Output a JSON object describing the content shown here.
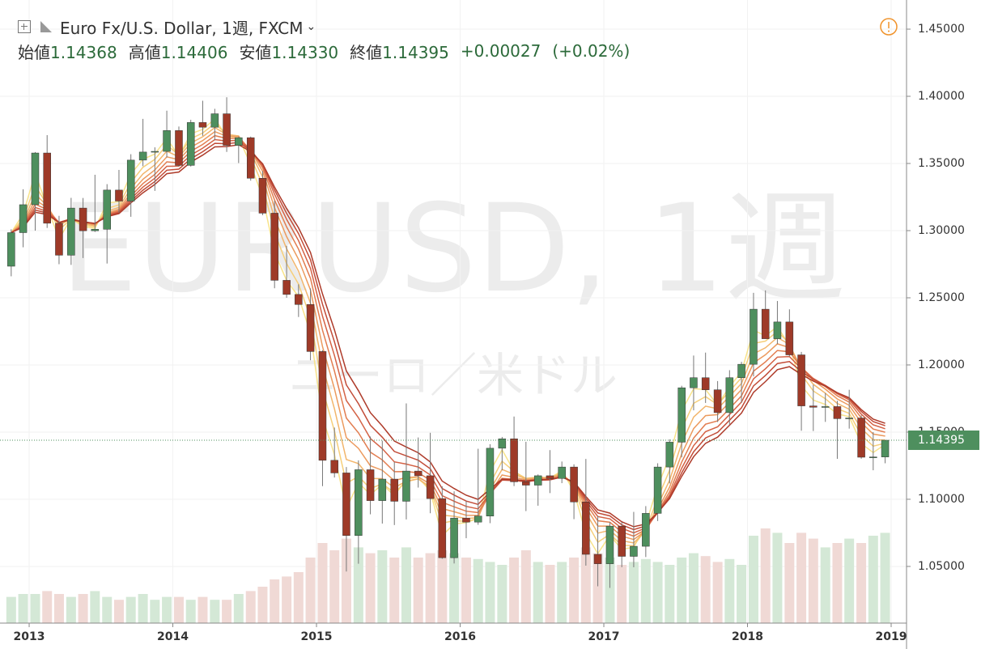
{
  "chart_data": {
    "type": "candlestick",
    "title": "Euro Fx/U.S. Dollar, 1週, FXCM",
    "ohlc_legend": [
      {
        "label": "始値",
        "value": "1.14368"
      },
      {
        "label": "高値",
        "value": "1.14406"
      },
      {
        "label": "安値",
        "value": "1.14330"
      },
      {
        "label": "終値",
        "value": "1.14395"
      }
    ],
    "change": "+0.00027",
    "change_pct": "(+0.02%)",
    "watermark": "EURUSD, 1週",
    "watermark_sub": "ユーロ／米ドル",
    "last_price": 1.14395,
    "xlim": [
      2012.797,
      2019.107
    ],
    "xticks": [
      2013,
      2014,
      2015,
      2016,
      2017,
      2018,
      2019
    ],
    "ylim": [
      1.0078,
      1.4717
    ],
    "yticks": [
      {
        "value": 1.05,
        "label": "1.05000"
      },
      {
        "value": 1.1,
        "label": "1.10000"
      },
      {
        "value": 1.15,
        "label": "1.15000"
      },
      {
        "value": 1.2,
        "label": "1.20000"
      },
      {
        "value": 1.25,
        "label": "1.25000"
      },
      {
        "value": 1.3,
        "label": "1.30000"
      },
      {
        "value": 1.35,
        "label": "1.35000"
      },
      {
        "value": 1.4,
        "label": "1.40000"
      },
      {
        "value": 1.45,
        "label": "1.45000"
      }
    ],
    "grid": true,
    "up_color": "#4e8f5e",
    "down_color": "#9e3a28",
    "wick_color": "#777777",
    "volume_up_color": "#d4e8d6",
    "volume_down_color": "#f0d9d5",
    "ema_periods": [
      2,
      3,
      4,
      5,
      6,
      7,
      8,
      9
    ],
    "ema_colors": [
      "#f8e38a",
      "#f6cf7a",
      "#f2b56c",
      "#ec9a5e",
      "#e27d50",
      "#d46245",
      "#c24c38",
      "#ae3b2a"
    ],
    "volume_lim": [
      0,
      100
    ],
    "x": [
      2012.875,
      2012.958,
      2013.042,
      2013.125,
      2013.208,
      2013.292,
      2013.375,
      2013.458,
      2013.542,
      2013.625,
      2013.708,
      2013.792,
      2013.875,
      2013.958,
      2014.042,
      2014.125,
      2014.208,
      2014.292,
      2014.375,
      2014.458,
      2014.542,
      2014.625,
      2014.708,
      2014.792,
      2014.875,
      2014.958,
      2015.042,
      2015.125,
      2015.208,
      2015.292,
      2015.375,
      2015.458,
      2015.542,
      2015.625,
      2015.708,
      2015.792,
      2015.875,
      2015.958,
      2016.042,
      2016.125,
      2016.208,
      2016.292,
      2016.375,
      2016.458,
      2016.542,
      2016.625,
      2016.708,
      2016.792,
      2016.875,
      2016.958,
      2017.042,
      2017.125,
      2017.208,
      2017.292,
      2017.375,
      2017.458,
      2017.542,
      2017.625,
      2017.708,
      2017.792,
      2017.875,
      2017.958,
      2018.042,
      2018.125,
      2018.208,
      2018.292,
      2018.375,
      2018.458,
      2018.542,
      2018.625,
      2018.708,
      2018.792,
      2018.875,
      2018.958
    ],
    "open": [
      1.2735,
      1.2985,
      1.3193,
      1.3578,
      1.3055,
      1.2817,
      1.3168,
      1.2999,
      1.301,
      1.3302,
      1.322,
      1.3525,
      1.3585,
      1.359,
      1.3745,
      1.3486,
      1.3805,
      1.377,
      1.387,
      1.3635,
      1.3692,
      1.339,
      1.313,
      1.263,
      1.2525,
      1.245,
      1.21,
      1.129,
      1.1196,
      1.073,
      1.122,
      1.099,
      1.115,
      1.0985,
      1.121,
      1.1175,
      1.1005,
      1.0565,
      1.086,
      1.083,
      1.0875,
      1.138,
      1.145,
      1.113,
      1.1105,
      1.1175,
      1.1155,
      1.124,
      1.098,
      1.059,
      1.052,
      1.08,
      1.0575,
      1.065,
      1.0895,
      1.124,
      1.1425,
      1.183,
      1.1905,
      1.1815,
      1.1645,
      1.1905,
      1.2005,
      1.2415,
      1.2195,
      1.232,
      1.2075,
      1.1695,
      1.1685,
      1.169,
      1.16,
      1.1605,
      1.1313,
      1.1315
    ],
    "high": [
      1.301,
      1.3308,
      1.3585,
      1.3711,
      1.311,
      1.3244,
      1.3243,
      1.3416,
      1.3346,
      1.3452,
      1.3569,
      1.3832,
      1.362,
      1.3893,
      1.3775,
      1.3825,
      1.3967,
      1.3907,
      1.3993,
      1.37,
      1.37,
      1.3444,
      1.3222,
      1.2887,
      1.26,
      1.257,
      1.211,
      1.1534,
      1.124,
      1.129,
      1.1467,
      1.1436,
      1.1278,
      1.1714,
      1.146,
      1.1495,
      1.1096,
      1.1059,
      1.0986,
      1.1376,
      1.141,
      1.1464,
      1.1616,
      1.1428,
      1.1185,
      1.1366,
      1.1281,
      1.126,
      1.13,
      1.0874,
      1.0829,
      1.0828,
      1.0906,
      1.0949,
      1.1268,
      1.1446,
      1.1845,
      1.207,
      1.2092,
      1.188,
      1.1961,
      1.2023,
      1.2537,
      1.2555,
      1.2476,
      1.2414,
      1.2097,
      1.1852,
      1.1791,
      1.1733,
      1.1815,
      1.1625,
      1.15,
      1.144
    ],
    "low": [
      1.266,
      1.2876,
      1.3,
      1.302,
      1.275,
      1.2745,
      1.2796,
      1.299,
      1.2755,
      1.3133,
      1.3103,
      1.348,
      1.3296,
      1.3545,
      1.3478,
      1.3477,
      1.3706,
      1.3673,
      1.3586,
      1.3503,
      1.3372,
      1.3115,
      1.2571,
      1.25,
      1.2357,
      1.2035,
      1.1098,
      1.1162,
      1.0462,
      1.052,
      1.0888,
      1.0819,
      1.0808,
      1.085,
      1.1087,
      1.0896,
      1.0557,
      1.0522,
      1.071,
      1.081,
      1.0822,
      1.1216,
      1.1098,
      1.0912,
      1.0952,
      1.1046,
      1.112,
      1.0852,
      1.0506,
      1.0352,
      1.034,
      1.0494,
      1.0494,
      1.057,
      1.0838,
      1.1118,
      1.1312,
      1.1662,
      1.1717,
      1.1575,
      1.1554,
      1.1718,
      1.1915,
      1.2206,
      1.2155,
      1.2064,
      1.151,
      1.1508,
      1.1576,
      1.1301,
      1.1526,
      1.1302,
      1.1216,
      1.1268
    ],
    "close": [
      1.2985,
      1.3193,
      1.3578,
      1.3055,
      1.2817,
      1.3168,
      1.2999,
      1.301,
      1.3302,
      1.322,
      1.3525,
      1.3585,
      1.359,
      1.3745,
      1.3486,
      1.3805,
      1.377,
      1.387,
      1.3635,
      1.3692,
      1.339,
      1.313,
      1.263,
      1.2525,
      1.245,
      1.21,
      1.129,
      1.1196,
      1.073,
      1.122,
      1.099,
      1.115,
      1.0985,
      1.121,
      1.1175,
      1.1005,
      1.0565,
      1.086,
      1.083,
      1.0875,
      1.138,
      1.145,
      1.113,
      1.1105,
      1.1175,
      1.1155,
      1.124,
      1.098,
      1.059,
      1.052,
      1.08,
      1.0575,
      1.065,
      1.0895,
      1.124,
      1.1425,
      1.183,
      1.1905,
      1.1815,
      1.1645,
      1.1905,
      1.2005,
      1.2415,
      1.2195,
      1.232,
      1.2075,
      1.1695,
      1.1685,
      1.169,
      1.16,
      1.1605,
      1.1313,
      1.1315,
      1.14395
    ],
    "volume": [
      18,
      20,
      20,
      22,
      20,
      18,
      20,
      22,
      18,
      16,
      18,
      20,
      16,
      18,
      18,
      16,
      18,
      16,
      16,
      20,
      22,
      25,
      30,
      32,
      35,
      45,
      55,
      50,
      58,
      52,
      48,
      50,
      45,
      52,
      45,
      48,
      50,
      48,
      45,
      44,
      42,
      40,
      45,
      50,
      42,
      40,
      42,
      45,
      52,
      48,
      45,
      40,
      42,
      44,
      42,
      40,
      45,
      48,
      46,
      42,
      44,
      40,
      60,
      65,
      62,
      55,
      62,
      58,
      52,
      55,
      58,
      55,
      60,
      62
    ]
  }
}
